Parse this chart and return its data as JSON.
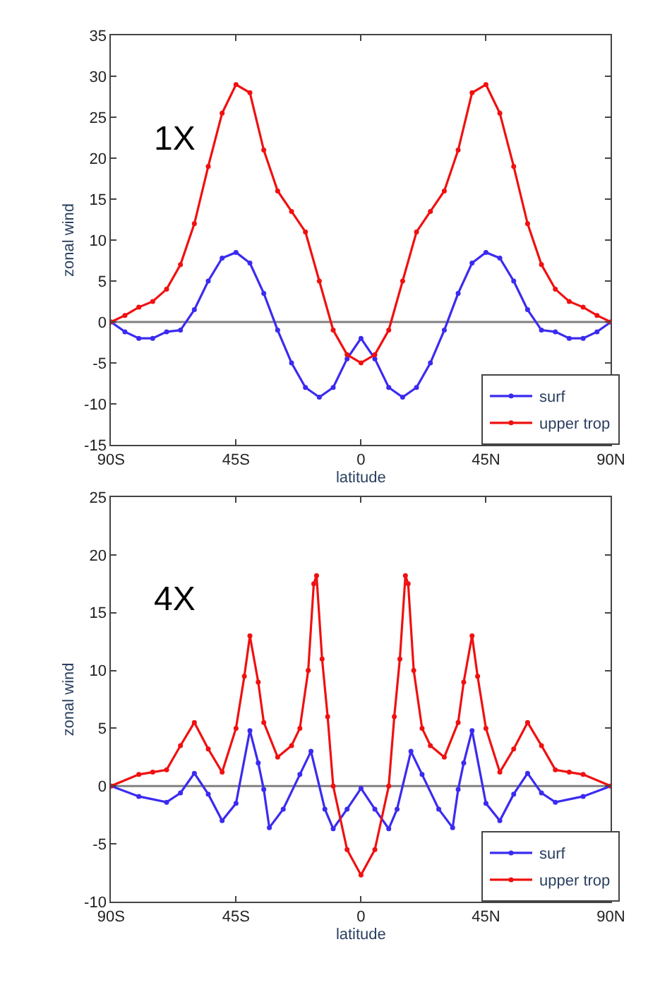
{
  "chart_data": [
    {
      "type": "line",
      "xlabel": "latitude",
      "ylabel": "zonal wind",
      "annotations": [
        "1X"
      ],
      "marker": "circle",
      "line_style": "solid",
      "grid": false,
      "legend": "bottom right",
      "xlim": [
        -90,
        90
      ],
      "xticks": [
        {
          "value": -90,
          "label": "90S"
        },
        {
          "value": -45,
          "label": "45S"
        },
        0,
        {
          "value": 45,
          "label": "45N"
        },
        {
          "value": 90,
          "label": "90N"
        }
      ],
      "ylim": [
        -15,
        35
      ],
      "yticks": [
        -15,
        -10,
        -5,
        0,
        5,
        10,
        15,
        20,
        25,
        30,
        35
      ],
      "ref_lines": [
        {
          "axis": "y",
          "value": 0,
          "color": "#808080"
        }
      ],
      "series": [
        {
          "name": "surf",
          "color": "#3b2bf0",
          "x": [
            -90,
            -85,
            -80,
            -75,
            -70,
            -65,
            -60,
            -55,
            -50,
            -45,
            -40,
            -35,
            -30,
            -25,
            -20,
            -15,
            -10,
            -5,
            0,
            5,
            10,
            15,
            20,
            25,
            30,
            35,
            40,
            45,
            50,
            55,
            60,
            65,
            70,
            75,
            80,
            85,
            90
          ],
          "values": [
            0,
            -1.2,
            -2,
            -2,
            -1.2,
            -1,
            1.5,
            5,
            7.8,
            8.5,
            7.2,
            3.5,
            -1,
            -5,
            -8,
            -9.2,
            -8,
            -4.5,
            -2,
            -4.5,
            -8,
            -9.2,
            -8,
            -5,
            -1,
            3.5,
            7.2,
            8.5,
            7.8,
            5,
            1.5,
            -1,
            -1.2,
            -2,
            -2,
            -1.2,
            0
          ]
        },
        {
          "name": "upper trop",
          "color": "#f01010",
          "x": [
            -90,
            -85,
            -80,
            -75,
            -70,
            -65,
            -60,
            -55,
            -50,
            -45,
            -40,
            -35,
            -30,
            -25,
            -20,
            -15,
            -10,
            -5,
            0,
            5,
            10,
            15,
            20,
            25,
            30,
            35,
            40,
            45,
            50,
            55,
            60,
            65,
            70,
            75,
            80,
            85,
            90
          ],
          "values": [
            0,
            0.8,
            1.8,
            2.5,
            4,
            7,
            12,
            19,
            25.5,
            29,
            28,
            21,
            16,
            13.5,
            11,
            5,
            -1,
            -4,
            -5,
            -4,
            -1,
            5,
            11,
            13.5,
            16,
            21,
            28,
            29,
            25.5,
            19,
            12,
            7,
            4,
            2.5,
            1.8,
            0.8,
            0
          ]
        }
      ]
    },
    {
      "type": "line",
      "xlabel": "latitude",
      "ylabel": "zonal wind",
      "annotations": [
        "4X"
      ],
      "marker": "circle",
      "line_style": "solid",
      "grid": false,
      "legend": "bottom right",
      "xlim": [
        -90,
        90
      ],
      "xticks": [
        {
          "value": -90,
          "label": "90S"
        },
        {
          "value": -45,
          "label": "45S"
        },
        0,
        {
          "value": 45,
          "label": "45N"
        },
        {
          "value": 90,
          "label": "90N"
        }
      ],
      "ylim": [
        -10,
        25
      ],
      "yticks": [
        -10,
        -5,
        0,
        5,
        10,
        15,
        20,
        25
      ],
      "ref_lines": [
        {
          "axis": "y",
          "value": 0,
          "color": "#808080"
        }
      ],
      "series": [
        {
          "name": "surf",
          "color": "#3b2bf0",
          "x": [
            -90,
            -80,
            -70,
            -65,
            -60,
            -55,
            -50,
            -45,
            -40,
            -37,
            -35,
            -33,
            -28,
            -22,
            -18,
            -13,
            -10,
            -5,
            0,
            5,
            10,
            13,
            18,
            22,
            28,
            33,
            35,
            37,
            40,
            45,
            50,
            55,
            60,
            65,
            70,
            80,
            90
          ],
          "values": [
            0,
            -0.9,
            -1.4,
            -0.6,
            1.1,
            -0.7,
            -3,
            -1.5,
            4.8,
            2,
            -0.3,
            -3.6,
            -2,
            1,
            3,
            -2,
            -3.7,
            -2,
            -0.2,
            -2,
            -3.7,
            -2,
            3,
            1,
            -2,
            -3.6,
            -0.3,
            2,
            4.8,
            -1.5,
            -3,
            -0.7,
            1.1,
            -0.6,
            -1.4,
            -0.9,
            0
          ]
        },
        {
          "name": "upper trop",
          "color": "#f01010",
          "x": [
            -90,
            -80,
            -75,
            -70,
            -65,
            -60,
            -55,
            -50,
            -45,
            -42,
            -40,
            -37,
            -35,
            -30,
            -25,
            -22,
            -19,
            -17,
            -16,
            -14,
            -12,
            -10,
            -5,
            0,
            5,
            10,
            12,
            14,
            16,
            17,
            19,
            22,
            25,
            30,
            35,
            37,
            40,
            42,
            45,
            50,
            55,
            60,
            65,
            70,
            75,
            80,
            90
          ],
          "values": [
            0,
            1,
            1.2,
            1.4,
            3.5,
            5.5,
            3.2,
            1.2,
            5,
            9.5,
            13,
            9,
            5.5,
            2.5,
            3.5,
            5,
            10,
            17.5,
            18.2,
            11,
            6,
            0,
            -5.5,
            -7.7,
            -5.5,
            0,
            6,
            11,
            18.2,
            17.5,
            10,
            5,
            3.5,
            2.5,
            5.5,
            9,
            13,
            9.5,
            5,
            1.2,
            3.2,
            5.5,
            3.5,
            1.4,
            1.2,
            1,
            0
          ]
        }
      ]
    }
  ]
}
